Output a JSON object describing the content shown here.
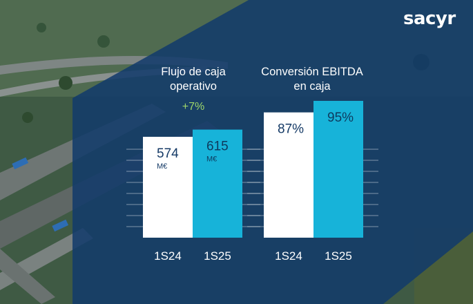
{
  "brand": {
    "logo_text": "sacyr"
  },
  "colors": {
    "panel": "#123a6b",
    "bar_prior": "#ffffff",
    "bar_current": "#17b3d9",
    "value_prior": "#153a66",
    "value_current": "#0e3a5e",
    "delta": "#9ed66a"
  },
  "chart_data": [
    {
      "type": "bar",
      "title": "Flujo de caja operativo",
      "categories": [
        "1S24",
        "1S25"
      ],
      "values": [
        574,
        615
      ],
      "value_labels": [
        "574",
        "615"
      ],
      "unit": "M€",
      "annotation": "+7%",
      "grid": true
    },
    {
      "type": "bar",
      "title": "Conversión EBITDA en caja",
      "categories": [
        "1S24",
        "1S25"
      ],
      "values": [
        87,
        95
      ],
      "value_labels": [
        "87%",
        "95%"
      ],
      "grid": true
    }
  ]
}
